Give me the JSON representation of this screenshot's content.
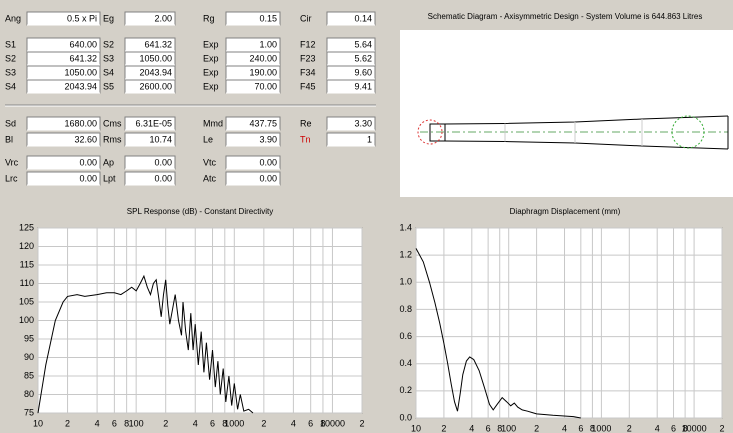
{
  "params": [
    [
      {
        "label": "Ang",
        "value": "0.5 x Pi"
      },
      {
        "label": "Eg",
        "value": "2.00"
      },
      {
        "label": "Rg",
        "value": "0.15"
      },
      {
        "label": "Cir",
        "value": "0.14"
      }
    ],
    [
      {
        "label": "S1",
        "value": "640.00"
      },
      {
        "label": "S2",
        "value": "641.32"
      },
      {
        "label": "Exp",
        "value": "1.00"
      },
      {
        "label": "F12",
        "value": "5.64"
      }
    ],
    [
      {
        "label": "S2",
        "value": "641.32"
      },
      {
        "label": "S3",
        "value": "1050.00"
      },
      {
        "label": "Exp",
        "value": "240.00"
      },
      {
        "label": "F23",
        "value": "5.62"
      }
    ],
    [
      {
        "label": "S3",
        "value": "1050.00"
      },
      {
        "label": "S4",
        "value": "2043.94"
      },
      {
        "label": "Exp",
        "value": "190.00"
      },
      {
        "label": "F34",
        "value": "9.60"
      }
    ],
    [
      {
        "label": "S4",
        "value": "2043.94"
      },
      {
        "label": "S5",
        "value": "2600.00"
      },
      {
        "label": "Exp",
        "value": "70.00"
      },
      {
        "label": "F45",
        "value": "9.41"
      }
    ],
    [
      {
        "label": "Sd",
        "value": "1680.00"
      },
      {
        "label": "Cms",
        "value": "6.31E-05"
      },
      {
        "label": "Mmd",
        "value": "437.75"
      },
      {
        "label": "Re",
        "value": "3.30"
      }
    ],
    [
      {
        "label": "Bl",
        "value": "32.60"
      },
      {
        "label": "Rms",
        "value": "10.74"
      },
      {
        "label": "Le",
        "value": "3.90"
      },
      {
        "label": "Tn",
        "value": "1",
        "color": "#cc0000"
      }
    ],
    [
      {
        "label": "Vrc",
        "value": "0.00"
      },
      {
        "label": "Ap",
        "value": "0.00"
      },
      {
        "label": "Vtc",
        "value": "0.00"
      }
    ],
    [
      {
        "label": "Lrc",
        "value": "0.00"
      },
      {
        "label": "Lpt",
        "value": "0.00"
      },
      {
        "label": "Atc",
        "value": "0.00"
      }
    ]
  ],
  "schematic": {
    "title": "Schematic Diagram - Axisymmetric Design - System Volume is 644.863 Litres"
  },
  "charts": [
    {
      "type": "line",
      "title": "SPL Response (dB) - Constant Directivity",
      "xscale": "log",
      "grid": true,
      "color": "#000000",
      "xlim": [
        10,
        20000
      ],
      "xticks": [
        10,
        {
          "value": 20,
          "label": "2"
        },
        {
          "value": 40,
          "label": "4"
        },
        {
          "value": 60,
          "label": "6"
        },
        {
          "value": 80,
          "label": "8"
        },
        100,
        {
          "value": 200,
          "label": "2"
        },
        {
          "value": 400,
          "label": "4"
        },
        {
          "value": 600,
          "label": "6"
        },
        {
          "value": 800,
          "label": "8"
        },
        1000,
        {
          "value": 2000,
          "label": "2"
        },
        {
          "value": 4000,
          "label": "4"
        },
        {
          "value": 6000,
          "label": "6"
        },
        {
          "value": 8000,
          "label": "8"
        },
        10000,
        {
          "value": 20000,
          "label": "2"
        }
      ],
      "ylim": [
        75,
        125
      ],
      "yticks": [
        75,
        80,
        85,
        90,
        95,
        100,
        105,
        110,
        115,
        120,
        125
      ],
      "x": [
        10,
        12,
        15,
        18,
        20,
        25,
        30,
        40,
        50,
        60,
        70,
        80,
        90,
        100,
        110,
        120,
        130,
        140,
        150,
        160,
        170,
        180,
        190,
        200,
        210,
        220,
        250,
        270,
        290,
        300,
        320,
        340,
        360,
        380,
        400,
        430,
        460,
        490,
        520,
        560,
        600,
        640,
        680,
        720,
        770,
        820,
        880,
        940,
        1000,
        1080,
        1150,
        1250,
        1400,
        1550
      ],
      "values": [
        75,
        88,
        100,
        105,
        106.5,
        107,
        106.5,
        107,
        107.5,
        107.5,
        107,
        108,
        109,
        108,
        110,
        112,
        109,
        107,
        110,
        111,
        106,
        101,
        107,
        111,
        104,
        99,
        107,
        100,
        96,
        105,
        97,
        92,
        102,
        92,
        99,
        88,
        97,
        86,
        94,
        84,
        92,
        82,
        89,
        80,
        87,
        78,
        85,
        77,
        83,
        76,
        80,
        75.5,
        76,
        75
      ]
    },
    {
      "type": "line",
      "title": "Diaphragm Displacement (mm)",
      "xscale": "log",
      "grid": true,
      "color": "#000000",
      "xlim": [
        10,
        20000
      ],
      "xticks": [
        10,
        {
          "value": 20,
          "label": "2"
        },
        {
          "value": 40,
          "label": "4"
        },
        {
          "value": 60,
          "label": "6"
        },
        {
          "value": 80,
          "label": "8"
        },
        100,
        {
          "value": 200,
          "label": "2"
        },
        {
          "value": 400,
          "label": "4"
        },
        {
          "value": 600,
          "label": "6"
        },
        {
          "value": 800,
          "label": "8"
        },
        1000,
        {
          "value": 2000,
          "label": "2"
        },
        {
          "value": 4000,
          "label": "4"
        },
        {
          "value": 6000,
          "label": "6"
        },
        {
          "value": 8000,
          "label": "8"
        },
        10000,
        {
          "value": 20000,
          "label": "2"
        }
      ],
      "ylim": [
        0,
        1.4
      ],
      "yticks": [
        {
          "value": 0,
          "label": "0.0"
        },
        0.2,
        0.4,
        0.6,
        0.8,
        {
          "value": 1,
          "label": "1.0"
        },
        1.2,
        1.4
      ],
      "x": [
        10,
        12,
        14,
        16,
        18,
        20,
        22,
        24,
        26,
        28,
        30,
        32,
        35,
        38,
        42,
        48,
        55,
        62,
        68,
        75,
        85,
        95,
        105,
        115,
        125,
        140,
        160,
        180,
        200,
        300,
        500,
        600
      ],
      "values": [
        1.25,
        1.15,
        1.0,
        0.85,
        0.7,
        0.55,
        0.4,
        0.25,
        0.12,
        0.05,
        0.18,
        0.32,
        0.42,
        0.45,
        0.43,
        0.35,
        0.22,
        0.1,
        0.06,
        0.1,
        0.15,
        0.12,
        0.09,
        0.11,
        0.08,
        0.06,
        0.05,
        0.04,
        0.03,
        0.02,
        0.01,
        0
      ]
    }
  ]
}
